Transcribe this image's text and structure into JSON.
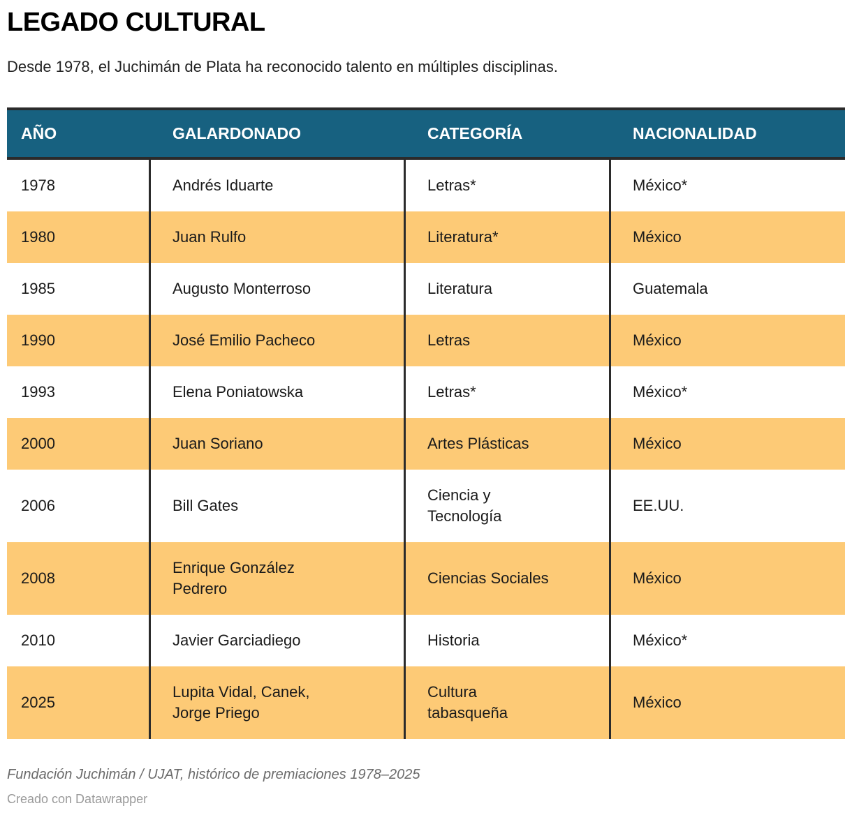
{
  "header": {
    "title": "LEGADO CULTURAL",
    "subtitle": "Desde 1978, el Juchimán de Plata ha reconocido talento en múltiples disciplinas."
  },
  "chart_data": {
    "type": "table",
    "title": "LEGADO CULTURAL",
    "columns": [
      "AÑO",
      "GALARDONADO",
      "CATEGORÍA",
      "NACIONALIDAD"
    ],
    "rows": [
      {
        "year": "1978",
        "galardonado": "Andrés Iduarte",
        "categoria": "Letras*",
        "nacionalidad": "México*",
        "highlight": false
      },
      {
        "year": "1980",
        "galardonado": "Juan Rulfo",
        "categoria": "Literatura*",
        "nacionalidad": "México",
        "highlight": true
      },
      {
        "year": "1985",
        "galardonado": "Augusto Monterroso",
        "categoria": "Literatura",
        "nacionalidad": "Guatemala",
        "highlight": false
      },
      {
        "year": "1990",
        "galardonado": "José Emilio Pacheco",
        "categoria": "Letras",
        "nacionalidad": "México",
        "highlight": true
      },
      {
        "year": "1993",
        "galardonado": "Elena Poniatowska",
        "categoria": "Letras*",
        "nacionalidad": "México*",
        "highlight": false
      },
      {
        "year": "2000",
        "galardonado": "Juan Soriano",
        "categoria": "Artes Plásticas",
        "nacionalidad": "México",
        "highlight": true
      },
      {
        "year": "2006",
        "galardonado": "Bill Gates",
        "categoria": "Ciencia y\nTecnología",
        "nacionalidad": "EE.UU.",
        "highlight": false
      },
      {
        "year": "2008",
        "galardonado": "Enrique González\nPedrero",
        "categoria": "Ciencias Sociales",
        "nacionalidad": "México",
        "highlight": true
      },
      {
        "year": "2010",
        "galardonado": "Javier Garciadiego",
        "categoria": "Historia",
        "nacionalidad": "México*",
        "highlight": false
      },
      {
        "year": "2025",
        "galardonado": "Lupita Vidal, Canek,\nJorge Priego",
        "categoria": "Cultura\ntabasqueña",
        "nacionalidad": "México",
        "highlight": true
      }
    ]
  },
  "footer": {
    "source": "Fundación Juchimán / UJAT, histórico de premiaciones 1978–2025",
    "attribution": "Creado con Datawrapper"
  },
  "colors": {
    "header_bg": "#176180",
    "header_text": "#ffffff",
    "row_highlight": "#fdca76",
    "row_default": "#ffffff",
    "border_dark": "#2b2b2b",
    "body_text": "#1a1a1a"
  }
}
